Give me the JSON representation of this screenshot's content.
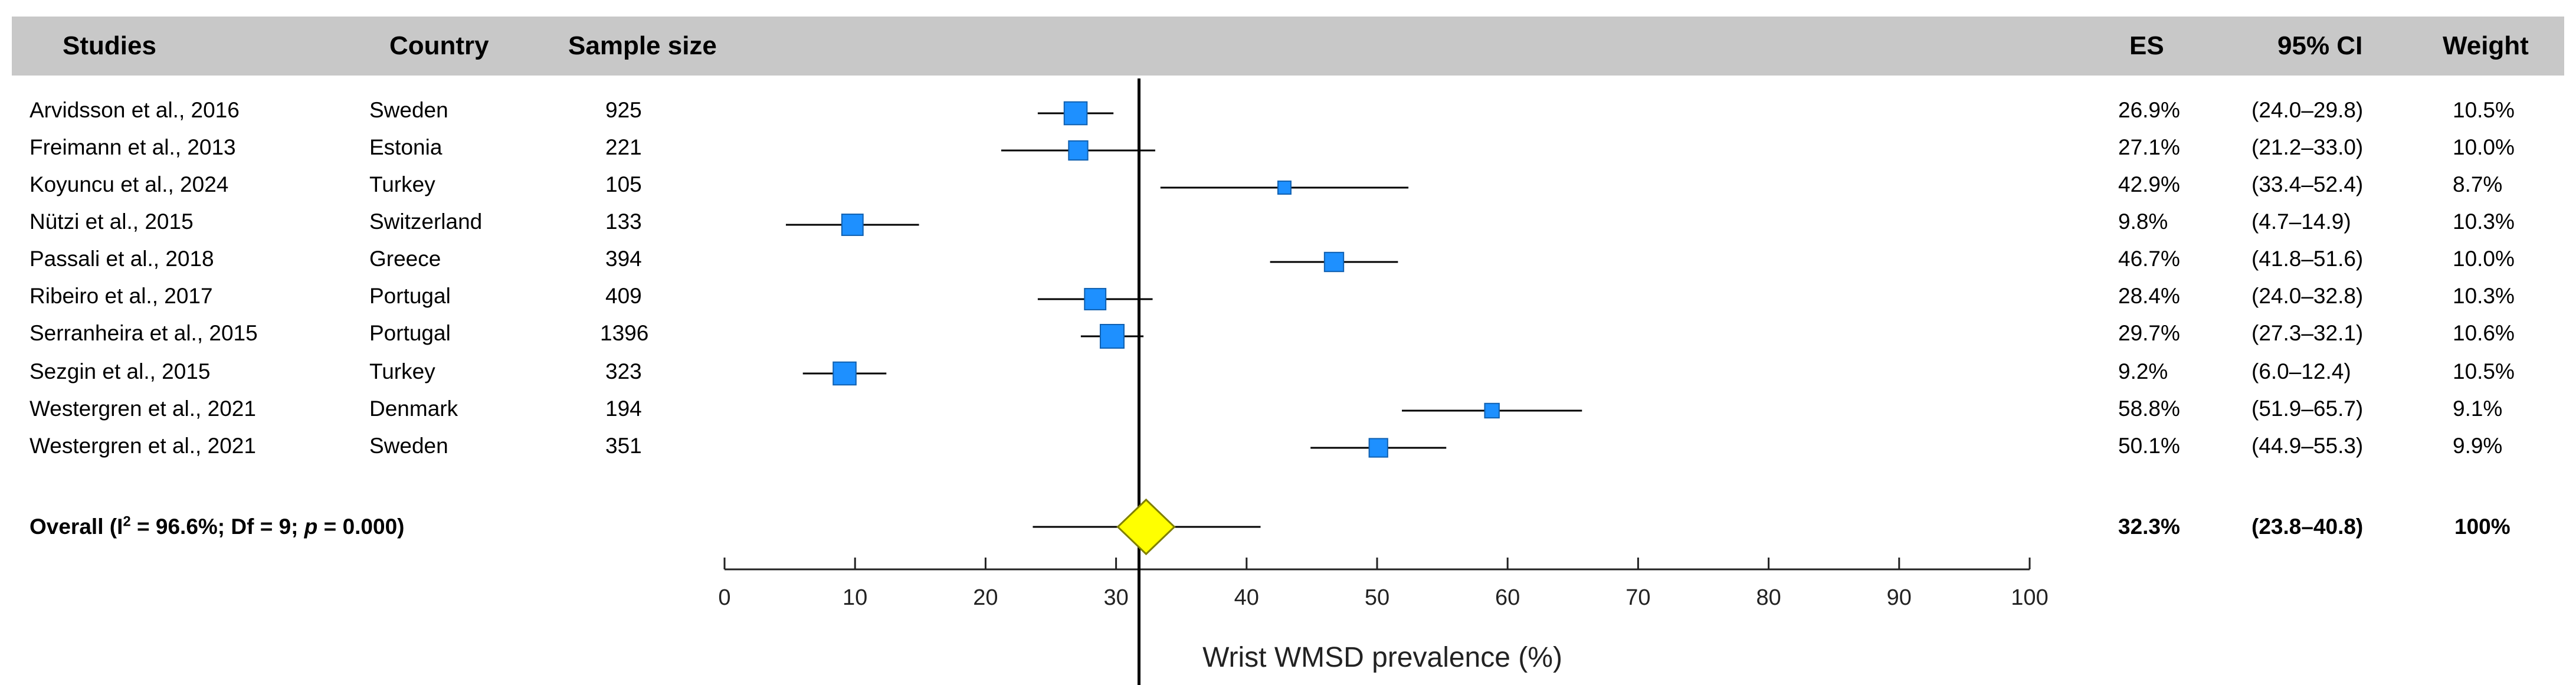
{
  "headers": {
    "studies": "Studies",
    "country": "Country",
    "sample_size": "Sample size",
    "es": "ES",
    "ci": "95% CI",
    "weight": "Weight"
  },
  "rows": [
    {
      "study": "Arvidsson et al., 2016",
      "country": "Sweden",
      "n": "925",
      "es": "26.9%",
      "ci": "(24.0–29.8)",
      "weight": "10.5%"
    },
    {
      "study": "Freimann et al., 2013",
      "country": "Estonia",
      "n": "221",
      "es": "27.1%",
      "ci": "(21.2–33.0)",
      "weight": "10.0%"
    },
    {
      "study": "Koyuncu et al., 2024",
      "country": "Turkey",
      "n": "105",
      "es": "42.9%",
      "ci": "(33.4–52.4)",
      "weight": "8.7%"
    },
    {
      "study": "Nützi et al., 2015",
      "country": "Switzerland",
      "n": "133",
      "es": "9.8%",
      "ci": "(4.7–14.9)",
      "weight": "10.3%"
    },
    {
      "study": "Passali et al., 2018",
      "country": "Greece",
      "n": "394",
      "es": "46.7%",
      "ci": "(41.8–51.6)",
      "weight": "10.0%"
    },
    {
      "study": "Ribeiro et al., 2017",
      "country": "Portugal",
      "n": "409",
      "es": "28.4%",
      "ci": "(24.0–32.8)",
      "weight": "10.3%"
    },
    {
      "study": "Serranheira et al., 2015",
      "country": "Portugal",
      "n": "1396",
      "es": "29.7%",
      "ci": "(27.3–32.1)",
      "weight": "10.6%"
    },
    {
      "study": "Sezgin et al., 2015",
      "country": "Turkey",
      "n": "323",
      "es": "9.2%",
      "ci": "(6.0–12.4)",
      "weight": "10.5%"
    },
    {
      "study": "Westergren et al., 2021",
      "country": "Denmark",
      "n": "194",
      "es": "58.8%",
      "ci": "(51.9–65.7)",
      "weight": "9.1%"
    },
    {
      "study": "Westergren et al., 2021",
      "country": "Sweden",
      "n": "351",
      "es": "50.1%",
      "ci": "(44.9–55.3)",
      "weight": "9.9%"
    }
  ],
  "overall": {
    "label_prefix": "Overall (I",
    "label_sup": "2",
    "label_mid": " = 96.6%; Df = 9; ",
    "label_p": "p",
    "label_end": " = 0.000)",
    "es": "32.3%",
    "ci": "(23.8–40.8)",
    "weight": "100%"
  },
  "colors": {
    "header_bg": "#c8c8c8",
    "marker": "#1e90ff",
    "marker_edge": "#1060b0",
    "diamond": "#ffff00",
    "diamond_edge": "#808000"
  },
  "chart_data": {
    "type": "forest",
    "xlabel": "Wrist WMSD prevalence (%)",
    "xlim": [
      0,
      100
    ],
    "ticks": [
      0,
      10,
      20,
      30,
      40,
      50,
      60,
      70,
      80,
      90,
      100
    ],
    "reference_line": 32.3,
    "series": [
      {
        "name": "Arvidsson et al., 2016",
        "es": 26.9,
        "lo": 24.0,
        "hi": 29.8,
        "weight": 10.5
      },
      {
        "name": "Freimann et al., 2013",
        "es": 27.1,
        "lo": 21.2,
        "hi": 33.0,
        "weight": 10.0
      },
      {
        "name": "Koyuncu et al., 2024",
        "es": 42.9,
        "lo": 33.4,
        "hi": 52.4,
        "weight": 8.7
      },
      {
        "name": "Nützi et al., 2015",
        "es": 9.8,
        "lo": 4.7,
        "hi": 14.9,
        "weight": 10.3
      },
      {
        "name": "Passali et al., 2018",
        "es": 46.7,
        "lo": 41.8,
        "hi": 51.6,
        "weight": 10.0
      },
      {
        "name": "Ribeiro et al., 2017",
        "es": 28.4,
        "lo": 24.0,
        "hi": 32.8,
        "weight": 10.3
      },
      {
        "name": "Serranheira et al., 2015",
        "es": 29.7,
        "lo": 27.3,
        "hi": 32.1,
        "weight": 10.6
      },
      {
        "name": "Sezgin et al., 2015",
        "es": 9.2,
        "lo": 6.0,
        "hi": 12.4,
        "weight": 10.5
      },
      {
        "name": "Westergren et al., 2021 (Denmark)",
        "es": 58.8,
        "lo": 51.9,
        "hi": 65.7,
        "weight": 9.1
      },
      {
        "name": "Westergren et al., 2021 (Sweden)",
        "es": 50.1,
        "lo": 44.9,
        "hi": 55.3,
        "weight": 9.9
      }
    ],
    "overall": {
      "es": 32.3,
      "lo": 23.8,
      "hi": 40.8,
      "pi_lo": 23.8,
      "pi_hi": 40.8
    }
  }
}
